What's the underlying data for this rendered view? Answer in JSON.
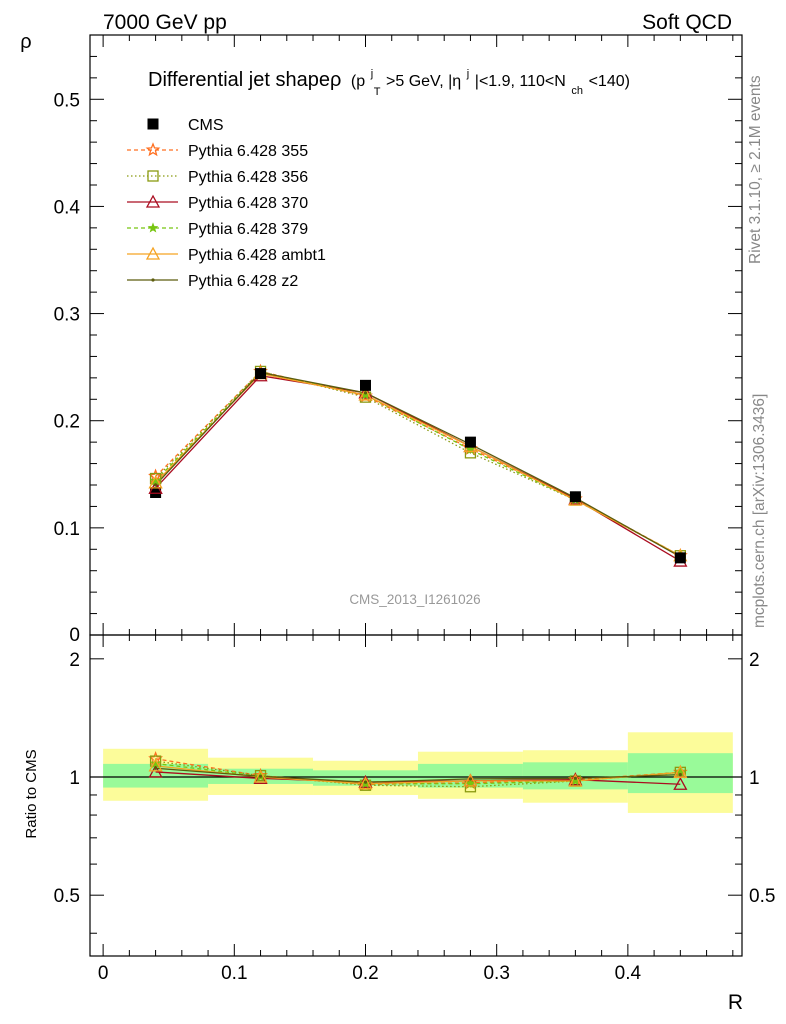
{
  "header": {
    "left": "7000 GeV pp",
    "right": "Soft QCD"
  },
  "side": {
    "rivet": "Rivet 3.1.10, ≥ 2.1M events",
    "mcplots": "mcplots.cern.ch [arXiv:1306.3436]"
  },
  "watermark": "CMS_2013_I1261026",
  "chart_data": {
    "type": "line",
    "title": {
      "main": "Differential jet shapeρ",
      "p": "(p",
      "p_sup": "j",
      "p_sub": "T",
      "mid": ">5 GeV, |η",
      "eta_sup": "j",
      "tail": "|<1.9, 110<N",
      "n_sub": "ch",
      "end": "<140)"
    },
    "xlabel": "R",
    "ylabel": "ρ",
    "ratio_ylabel": "Ratio to CMS",
    "xlim": [
      -0.01,
      0.487
    ],
    "ylim": [
      0,
      0.56
    ],
    "ratio_ylim": [
      0.35,
      2.3
    ],
    "x_ticks": [
      "0",
      "0.1",
      "0.2",
      "0.3",
      "0.4"
    ],
    "y_ticks": [
      "0.1",
      "0.2",
      "0.3",
      "0.4",
      "0.5"
    ],
    "y_zero_label": "0",
    "ratio_ticks": [
      "0.5",
      "1",
      "2"
    ],
    "x": [
      0.04,
      0.12,
      0.2,
      0.28,
      0.36,
      0.44
    ],
    "bin_edges": [
      0,
      0.08,
      0.16,
      0.24,
      0.32,
      0.4,
      0.48
    ],
    "data": {
      "name": "CMS",
      "color": "#000000",
      "values": [
        0.133,
        0.244,
        0.233,
        0.18,
        0.129,
        0.072
      ],
      "band_green": [
        [
          0.94,
          1.08
        ],
        [
          0.96,
          1.05
        ],
        [
          0.95,
          1.04
        ],
        [
          0.94,
          1.08
        ],
        [
          0.93,
          1.09
        ],
        [
          0.91,
          1.15
        ]
      ],
      "band_yellow": [
        [
          0.87,
          1.18
        ],
        [
          0.9,
          1.12
        ],
        [
          0.9,
          1.1
        ],
        [
          0.88,
          1.16
        ],
        [
          0.86,
          1.17
        ],
        [
          0.81,
          1.3
        ]
      ]
    },
    "band_colors": {
      "green": "#99fa99",
      "yellow": "#fcfc9a"
    },
    "series": [
      {
        "name": "Pythia 6.428 355",
        "color": "#ff6f20",
        "dash": "4,3",
        "marker": "star",
        "values": [
          0.148,
          0.246,
          0.223,
          0.174,
          0.127,
          0.074
        ]
      },
      {
        "name": "Pythia 6.428 356",
        "color": "#8a9a10",
        "dash": "1.5,2.5",
        "marker": "square",
        "values": [
          0.146,
          0.246,
          0.222,
          0.17,
          0.126,
          0.074
        ]
      },
      {
        "name": "Pythia 6.428 370",
        "color": "#aa0d20",
        "dash": "",
        "marker": "triangle",
        "values": [
          0.137,
          0.242,
          0.226,
          0.176,
          0.127,
          0.069
        ]
      },
      {
        "name": "Pythia 6.428 379",
        "color": "#77c511",
        "dash": "4,3",
        "marker": "smallstar",
        "values": [
          0.144,
          0.245,
          0.224,
          0.173,
          0.126,
          0.074
        ]
      },
      {
        "name": "Pythia 6.428 ambt1",
        "color": "#f5a323",
        "dash": "",
        "marker": "triangle",
        "values": [
          0.142,
          0.244,
          0.224,
          0.176,
          0.126,
          0.074
        ]
      },
      {
        "name": "Pythia 6.428 z2",
        "color": "#5c5c0d",
        "dash": "",
        "marker": "dot",
        "values": [
          0.14,
          0.245,
          0.226,
          0.178,
          0.128,
          0.073
        ]
      }
    ]
  }
}
